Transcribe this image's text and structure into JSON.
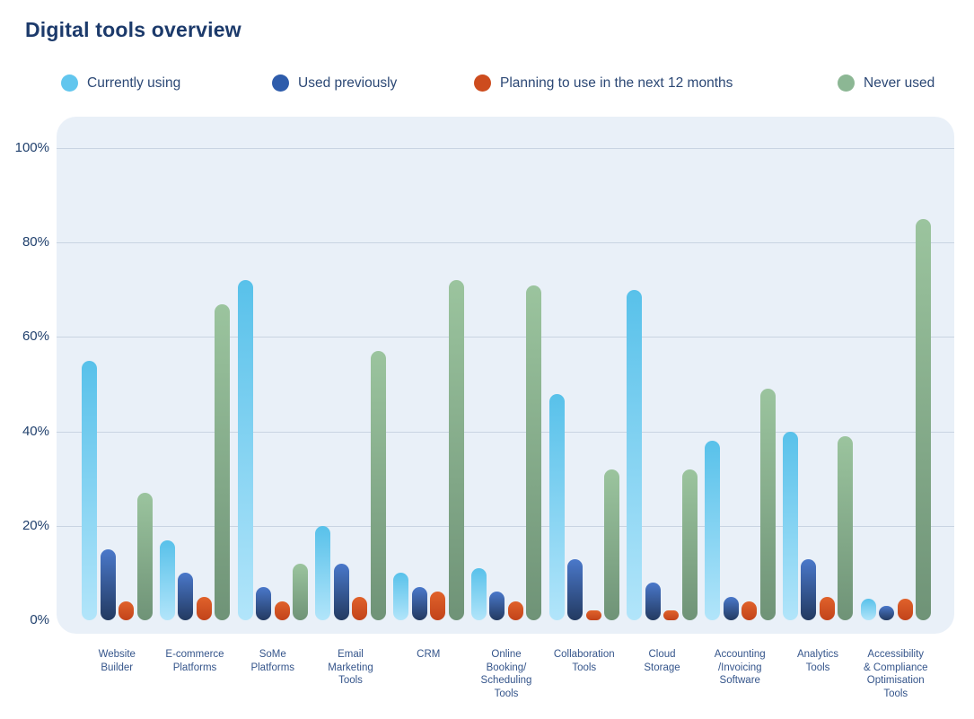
{
  "title": "Digital tools overview",
  "legend": {
    "items": [
      {
        "label": "Currently using",
        "color": "#62c6ee"
      },
      {
        "label": "Used previously",
        "color": "#2e5cab"
      },
      {
        "label": "Planning to use in the next 12 months",
        "color": "#cd4c1e"
      },
      {
        "label": "Never used",
        "color": "#8cb794"
      }
    ]
  },
  "axes": {
    "y_tick_labels": [
      "100%",
      "80%",
      "60%",
      "40%",
      "20%",
      "0%"
    ],
    "y_tick_values": [
      100,
      80,
      60,
      40,
      20,
      0
    ]
  },
  "colors": {
    "background": "#ffffff",
    "plot_panel": "#e9f0f8",
    "gridline": "#c9d4e2",
    "title_text": "#1c3a6b",
    "axis_text": "#20406d",
    "category_text": "#35558b"
  },
  "chart_data": {
    "type": "bar",
    "title": "Digital tools overview",
    "xlabel": "",
    "ylabel": "",
    "ylim": [
      0,
      100
    ],
    "grid": true,
    "legend_position": "top",
    "categories": [
      "Website Builder",
      "E-commerce Platforms",
      "SoMe Platforms",
      "Email Marketing Tools",
      "CRM",
      "Online Booking/Scheduling Tools",
      "Collaboration Tools",
      "Cloud Storage",
      "Accounting/Invoicing Software",
      "Analytics Tools",
      "Accessibility & Compliance Optimisation Tools"
    ],
    "category_label_lines": [
      [
        "Website",
        "Builder"
      ],
      [
        "E-commerce",
        "Platforms"
      ],
      [
        "SoMe",
        "Platforms"
      ],
      [
        "Email",
        "Marketing",
        "Tools"
      ],
      [
        "CRM"
      ],
      [
        "Online",
        "Booking/",
        "Scheduling",
        "Tools"
      ],
      [
        "Collaboration",
        "Tools"
      ],
      [
        "Cloud",
        "Storage"
      ],
      [
        "Accounting",
        "/Invoicing",
        "Software"
      ],
      [
        "Analytics",
        "Tools"
      ],
      [
        "Accessibility",
        "& Compliance",
        "Optimisation",
        "Tools"
      ]
    ],
    "series": [
      {
        "name": "Currently using",
        "color_top": "#58c1ea",
        "color_bottom": "#b2e5fa",
        "values": [
          55,
          17,
          72,
          20,
          10,
          11,
          48,
          70,
          38,
          40,
          4.5
        ]
      },
      {
        "name": "Used previously",
        "color_top": "#4a78ca",
        "color_bottom": "#233a61",
        "values": [
          15,
          10,
          7,
          12,
          7,
          6,
          13,
          8,
          5,
          13,
          3
        ]
      },
      {
        "name": "Planning to use in the next 12 months",
        "color_top": "#e0622b",
        "color_bottom": "#c2431a",
        "values": [
          4,
          5,
          4,
          5,
          6,
          4,
          2,
          2,
          4,
          5,
          4.5
        ]
      },
      {
        "name": "Never used",
        "color_top": "#9bc49e",
        "color_bottom": "#6f9377",
        "values": [
          27,
          67,
          12,
          57,
          72,
          71,
          32,
          32,
          49,
          39,
          85
        ]
      }
    ]
  }
}
